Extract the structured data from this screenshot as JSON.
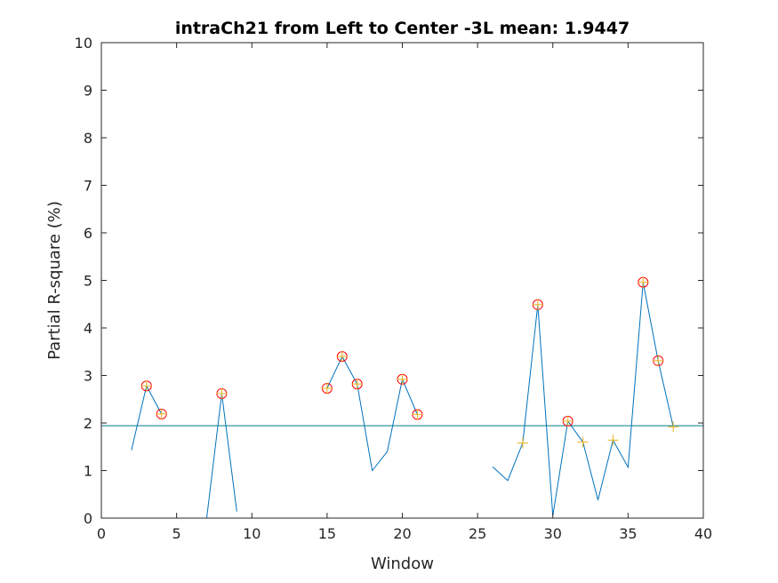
{
  "chart_data": {
    "type": "line",
    "title": "intraCh21 from Left to Center -3L mean: 1.9447",
    "xlabel": "Window",
    "ylabel": "Partial R-square (%)",
    "xlim": [
      0,
      40
    ],
    "ylim": [
      0,
      10
    ],
    "xticks": [
      "0",
      "5",
      "10",
      "15",
      "20",
      "25",
      "30",
      "35",
      "40"
    ],
    "yticks": [
      "0",
      "1",
      "2",
      "3",
      "4",
      "5",
      "6",
      "7",
      "8",
      "9",
      "10"
    ],
    "grid": false,
    "mean_line": 1.9447,
    "series": [
      {
        "x": [
          2,
          3,
          4,
          null,
          7,
          8,
          9,
          null,
          15,
          16,
          17,
          18,
          19,
          20,
          21,
          null,
          26,
          27,
          28,
          29,
          30,
          31,
          32,
          33,
          34,
          35,
          36,
          37,
          38
        ],
        "y": [
          1.43,
          2.78,
          2.19,
          null,
          0.0,
          2.62,
          0.14,
          null,
          2.73,
          3.4,
          2.82,
          1.0,
          1.4,
          2.92,
          2.18,
          null,
          1.08,
          0.79,
          1.58,
          4.49,
          0.05,
          2.04,
          1.6,
          0.38,
          1.64,
          1.07,
          4.96,
          3.31,
          1.92
        ],
        "color": "#0072BD"
      }
    ],
    "plus_markers": {
      "x": [
        3,
        4,
        8,
        15,
        16,
        17,
        20,
        21,
        28,
        29,
        31,
        32,
        34,
        36,
        37,
        38
      ],
      "y": [
        2.78,
        2.19,
        2.62,
        2.73,
        3.4,
        2.82,
        2.92,
        2.18,
        1.58,
        4.49,
        2.04,
        1.6,
        1.64,
        4.96,
        3.31,
        1.92
      ],
      "color": "#EDB120"
    },
    "circle_markers": {
      "x": [
        3,
        4,
        8,
        15,
        16,
        17,
        20,
        21,
        29,
        31,
        36,
        37
      ],
      "y": [
        2.78,
        2.19,
        2.62,
        2.73,
        3.4,
        2.82,
        2.92,
        2.18,
        4.49,
        2.04,
        4.96,
        3.31
      ],
      "color": "#FF0000"
    },
    "mean_line_color": "#007B8A"
  }
}
